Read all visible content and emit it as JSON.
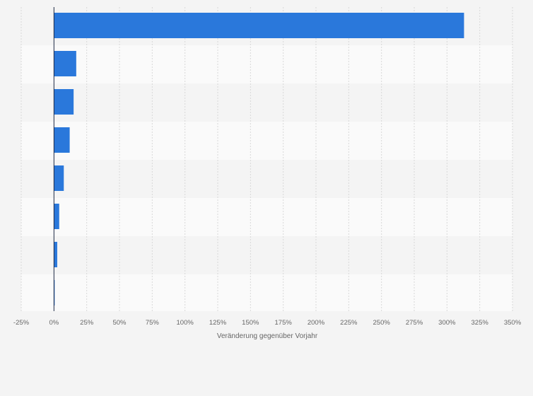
{
  "chart_data": {
    "type": "bar",
    "orientation": "horizontal",
    "categories": [
      "",
      "",
      "",
      "",
      "",
      "",
      "",
      ""
    ],
    "values": [
      313,
      17,
      15,
      12,
      7.5,
      4,
      2.5,
      0.3
    ],
    "xlabel": "Veränderung gegenüber Vorjahr",
    "xlim": [
      -25,
      350
    ],
    "ticks": [
      {
        "value": -25,
        "label": "-25%"
      },
      {
        "value": 0,
        "label": "0%"
      },
      {
        "value": 25,
        "label": "25%"
      },
      {
        "value": 50,
        "label": "50%"
      },
      {
        "value": 75,
        "label": "75%"
      },
      {
        "value": 100,
        "label": "100%"
      },
      {
        "value": 125,
        "label": "125%"
      },
      {
        "value": 150,
        "label": "150%"
      },
      {
        "value": 175,
        "label": "175%"
      },
      {
        "value": 200,
        "label": "200%"
      },
      {
        "value": 225,
        "label": "225%"
      },
      {
        "value": 250,
        "label": "250%"
      },
      {
        "value": 275,
        "label": "275%"
      },
      {
        "value": 300,
        "label": "300%"
      },
      {
        "value": 325,
        "label": "325%"
      },
      {
        "value": 350,
        "label": "350%"
      }
    ],
    "grid": true,
    "bar_color": "#2a78db",
    "zero_line_color": "#1f2a44",
    "band_colors": [
      "#f4f4f4",
      "#fafafa"
    ]
  }
}
